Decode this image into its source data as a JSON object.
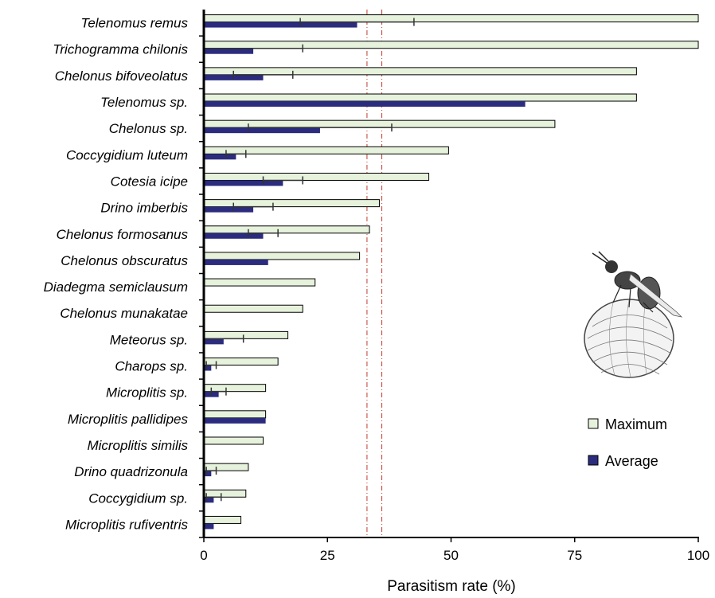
{
  "chart_data": {
    "type": "bar",
    "orientation": "horizontal",
    "xlabel": "Parasitism rate (%)",
    "xlim": [
      0,
      100
    ],
    "xticks": [
      0,
      25,
      50,
      75,
      100
    ],
    "reference_lines": [
      33,
      36
    ],
    "categories": [
      "Telenomus remus",
      "Trichogramma chilonis",
      "Chelonus bifoveolatus",
      "Telenomus sp.",
      "Chelonus sp.",
      "Coccygidium luteum",
      "Cotesia icipe",
      "Drino imberbis",
      "Chelonus formosanus",
      "Chelonus obscuratus",
      "Diadegma semiclausum",
      "Chelonus munakatae",
      "Meteorus sp.",
      "Charops sp.",
      "Microplitis sp.",
      "Microplitis pallidipes",
      "Microplitis similis",
      "Drino quadrizonula",
      "Coccygidium sp.",
      "Microplitis rufiventris"
    ],
    "series": [
      {
        "name": "Maximum",
        "color": "#e6f2dc",
        "values": [
          100,
          100,
          87.5,
          87.5,
          71,
          49.5,
          45.5,
          35.5,
          33.5,
          31.5,
          22.5,
          20,
          17,
          15,
          12.5,
          12.5,
          12,
          9,
          8.5,
          7.5
        ]
      },
      {
        "name": "Average",
        "color": "#2b2c7e",
        "values": [
          31,
          10,
          12,
          65,
          23.5,
          6.5,
          16,
          10,
          12,
          13,
          0,
          0,
          4,
          1.5,
          3,
          12.5,
          0,
          1.5,
          2,
          2
        ],
        "error": [
          11.5,
          10,
          6,
          0,
          14.5,
          2,
          4,
          4,
          3,
          0,
          0,
          0,
          4,
          1,
          1.5,
          0,
          0,
          1,
          1.5,
          0
        ]
      }
    ],
    "legend": {
      "position": "right"
    }
  }
}
